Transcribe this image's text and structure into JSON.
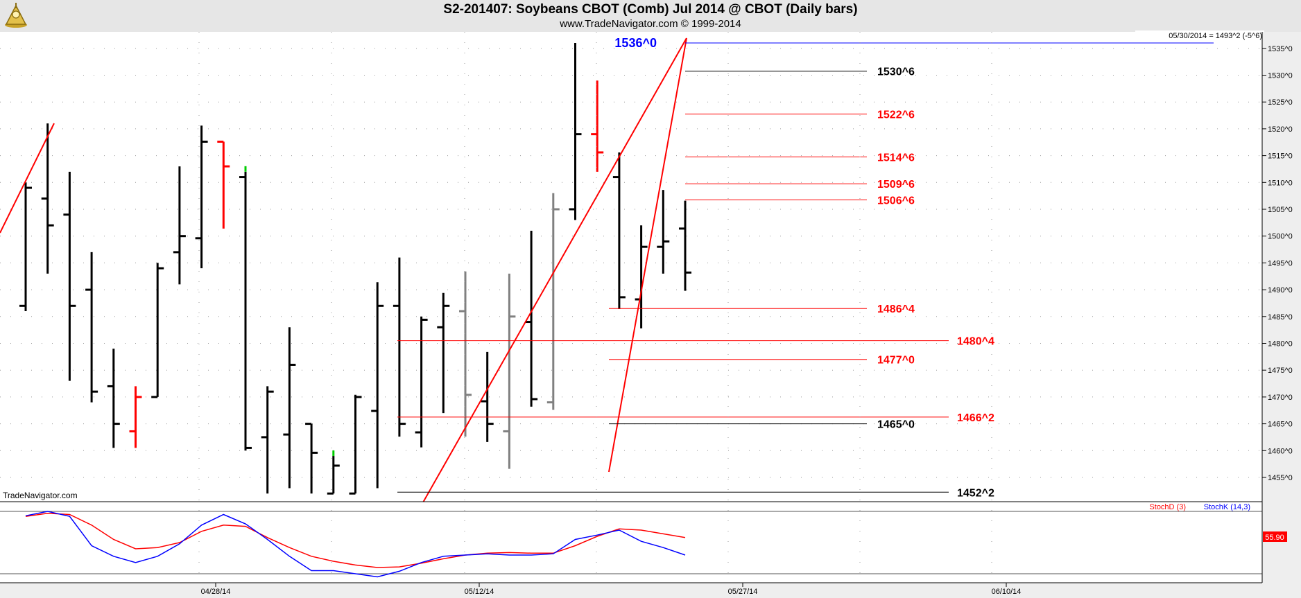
{
  "header": {
    "title": "S2-201407:  Soybeans CBOT (Comb) Jul 2014 @ CBOT  (Daily bars)",
    "subtitle": "www.TradeNavigator.com © 1999-2014",
    "logo_icon": "trade-navigator-logo-icon"
  },
  "watermark": "TradeNavigator.com",
  "last_price_box": "05/30/2014 = 1493^2 (-5^6)",
  "colors": {
    "up_bar": "#000000",
    "down_bar": "#ff0000",
    "neutral_bar": "#808080",
    "level_red": "#ff0000",
    "level_black": "#000000",
    "level_blue": "#0000ff",
    "stochD": "#ff0000",
    "stochK": "#0000ff",
    "accent_green": "#00cc00"
  },
  "chart_data": [
    {
      "type": "ohlc",
      "title": "S2-201407:  Soybeans CBOT (Comb) Jul 2014 @ CBOT  (Daily bars)",
      "price_axis_ticks": [
        "1455^0",
        "1460^0",
        "1465^0",
        "1470^0",
        "1475^0",
        "1480^0",
        "1485^0",
        "1490^0",
        "1495^0",
        "1500^0",
        "1505^0",
        "1510^0",
        "1515^0",
        "1520^0",
        "1525^0",
        "1530^0",
        "1535^0"
      ],
      "date_axis_ticks": [
        "04/28/14",
        "05/12/14",
        "05/27/14",
        "06/10/14"
      ],
      "ylim": [
        1451.5,
        1538.5
      ],
      "grid": true,
      "bars": [
        {
          "o": 1487.0,
          "h": 1510.0,
          "l": 1486.0,
          "c": 1509.0,
          "color": "black"
        },
        {
          "o": 1507.0,
          "h": 1521.0,
          "l": 1493.0,
          "c": 1502.0,
          "color": "black"
        },
        {
          "o": 1504.0,
          "h": 1512.0,
          "l": 1473.0,
          "c": 1487.0,
          "color": "black"
        },
        {
          "o": 1490.0,
          "h": 1497.0,
          "l": 1469.0,
          "c": 1471.0,
          "color": "black"
        },
        {
          "o": 1472.0,
          "h": 1479.0,
          "l": 1460.5,
          "c": 1465.0,
          "color": "black"
        },
        {
          "o": 1463.6,
          "h": 1472.0,
          "l": 1460.5,
          "c": 1470.0,
          "color": "red"
        },
        {
          "o": 1470.0,
          "h": 1495.0,
          "l": 1470.0,
          "c": 1494.0,
          "color": "black"
        },
        {
          "o": 1497.0,
          "h": 1513.0,
          "l": 1491.0,
          "c": 1500.0,
          "color": "black"
        },
        {
          "o": 1499.6,
          "h": 1520.6,
          "l": 1494.0,
          "c": 1517.6,
          "color": "black"
        },
        {
          "o": 1517.6,
          "h": 1517.6,
          "l": 1501.4,
          "c": 1513.0,
          "color": "red"
        },
        {
          "o": 1511.0,
          "h": 1512.0,
          "l": 1460.0,
          "c": 1460.5,
          "color": "black"
        },
        {
          "o": 1462.5,
          "h": 1472.0,
          "l": 1452.0,
          "c": 1471.0,
          "color": "black"
        },
        {
          "o": 1463.0,
          "h": 1483.0,
          "l": 1453.0,
          "c": 1476.0,
          "color": "black"
        },
        {
          "o": 1465.0,
          "h": 1465.0,
          "l": 1452.0,
          "c": 1459.6,
          "color": "black"
        },
        {
          "o": 1452.0,
          "h": 1459.0,
          "l": 1452.0,
          "c": 1457.2,
          "color": "black"
        },
        {
          "o": 1452.0,
          "h": 1470.4,
          "l": 1452.0,
          "c": 1470.0,
          "color": "black"
        },
        {
          "o": 1467.4,
          "h": 1491.4,
          "l": 1453.0,
          "c": 1487.0,
          "color": "black"
        },
        {
          "o": 1487.0,
          "h": 1496.0,
          "l": 1462.6,
          "c": 1465.0,
          "color": "black"
        },
        {
          "o": 1463.4,
          "h": 1485.0,
          "l": 1460.6,
          "c": 1484.4,
          "color": "black"
        },
        {
          "o": 1483.0,
          "h": 1489.4,
          "l": 1467.0,
          "c": 1487.0,
          "color": "black"
        },
        {
          "o": 1486.0,
          "h": 1493.4,
          "l": 1462.6,
          "c": 1470.4,
          "color": "gray"
        },
        {
          "o": 1469.2,
          "h": 1478.4,
          "l": 1461.6,
          "c": 1465.0,
          "color": "black"
        },
        {
          "o": 1463.6,
          "h": 1493.0,
          "l": 1456.6,
          "c": 1485.0,
          "color": "gray"
        },
        {
          "o": 1484.0,
          "h": 1501.0,
          "l": 1468.2,
          "c": 1469.6,
          "color": "black"
        },
        {
          "o": 1469.0,
          "h": 1508.0,
          "l": 1467.6,
          "c": 1505.0,
          "color": "gray"
        },
        {
          "o": 1505.0,
          "h": 1536.0,
          "l": 1503.0,
          "c": 1519.0,
          "color": "black"
        },
        {
          "o": 1519.0,
          "h": 1529.0,
          "l": 1512.0,
          "c": 1515.6,
          "color": "red"
        },
        {
          "o": 1511.0,
          "h": 1515.6,
          "l": 1486.4,
          "c": 1488.6,
          "color": "black"
        },
        {
          "o": 1488.2,
          "h": 1502.0,
          "l": 1482.8,
          "c": 1498.0,
          "color": "black"
        },
        {
          "o": 1498.0,
          "h": 1508.6,
          "l": 1493.0,
          "c": 1499.0,
          "color": "black"
        },
        {
          "o": 1501.4,
          "h": 1506.6,
          "l": 1489.8,
          "c": 1493.2,
          "color": "black"
        }
      ],
      "levels": [
        {
          "label": "1536^0",
          "value": 1536.0,
          "color": "blue"
        },
        {
          "label": "1530^6",
          "value": 1530.75,
          "color": "black"
        },
        {
          "label": "1522^6",
          "value": 1522.75,
          "color": "red"
        },
        {
          "label": "1514^6",
          "value": 1514.75,
          "color": "red"
        },
        {
          "label": "1509^6",
          "value": 1509.75,
          "color": "red"
        },
        {
          "label": "1506^6",
          "value": 1506.75,
          "color": "red"
        },
        {
          "label": "1486^4",
          "value": 1486.5,
          "color": "red"
        },
        {
          "label": "1480^4",
          "value": 1480.5,
          "color": "red"
        },
        {
          "label": "1477^0",
          "value": 1477.0,
          "color": "red"
        },
        {
          "label": "1466^2",
          "value": 1466.25,
          "color": "red"
        },
        {
          "label": "1465^0",
          "value": 1465.0,
          "color": "black"
        },
        {
          "label": "1452^2",
          "value": 1452.25,
          "color": "black"
        }
      ]
    },
    {
      "type": "line",
      "series": [
        {
          "name": "StochD (3)",
          "color": "red",
          "values": [
            92,
            97,
            95,
            78,
            55,
            40,
            42,
            50,
            68,
            78,
            76,
            58,
            42,
            28,
            20,
            14,
            10,
            11,
            17,
            24,
            30,
            33,
            34,
            33,
            33,
            45,
            60,
            72,
            70,
            64,
            58
          ]
        },
        {
          "name": "StochK (14,3)",
          "color": "blue",
          "values": [
            93,
            100,
            92,
            45,
            28,
            18,
            28,
            48,
            78,
            95,
            80,
            55,
            28,
            5,
            5,
            0,
            -5,
            4,
            18,
            28,
            30,
            32,
            30,
            30,
            32,
            55,
            62,
            70,
            52,
            42,
            30
          ]
        }
      ],
      "last_value_label": "55.90"
    }
  ]
}
